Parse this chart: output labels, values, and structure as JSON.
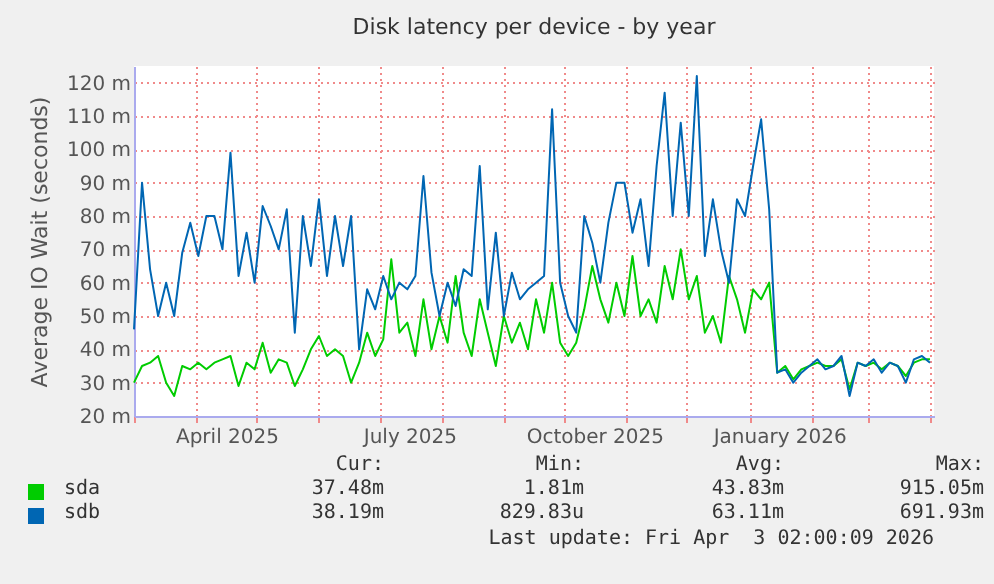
{
  "chart_data": {
    "type": "line",
    "title": "Disk latency per device - by year",
    "ylabel": "Average IO Wait (seconds)",
    "x": [
      "2025-03-01",
      "2025-03-05",
      "2025-03-09",
      "2025-03-13",
      "2025-03-17",
      "2025-03-21",
      "2025-03-25",
      "2025-03-29",
      "2025-04-02",
      "2025-04-06",
      "2025-04-10",
      "2025-04-14",
      "2025-04-18",
      "2025-04-22",
      "2025-04-26",
      "2025-04-30",
      "2025-05-04",
      "2025-05-08",
      "2025-05-12",
      "2025-05-16",
      "2025-05-20",
      "2025-05-24",
      "2025-05-28",
      "2025-06-01",
      "2025-06-05",
      "2025-06-09",
      "2025-06-13",
      "2025-06-17",
      "2025-06-21",
      "2025-06-25",
      "2025-06-29",
      "2025-07-03",
      "2025-07-07",
      "2025-07-11",
      "2025-07-15",
      "2025-07-19",
      "2025-07-23",
      "2025-07-27",
      "2025-07-31",
      "2025-08-04",
      "2025-08-08",
      "2025-08-12",
      "2025-08-16",
      "2025-08-20",
      "2025-08-24",
      "2025-08-28",
      "2025-09-01",
      "2025-09-05",
      "2025-09-09",
      "2025-09-13",
      "2025-09-17",
      "2025-09-21",
      "2025-09-25",
      "2025-09-29",
      "2025-10-03",
      "2025-10-07",
      "2025-10-11",
      "2025-10-15",
      "2025-10-19",
      "2025-10-23",
      "2025-10-27",
      "2025-10-31",
      "2025-11-04",
      "2025-11-08",
      "2025-11-12",
      "2025-11-16",
      "2025-11-20",
      "2025-11-24",
      "2025-11-28",
      "2025-12-02",
      "2025-12-06",
      "2025-12-10",
      "2025-12-14",
      "2025-12-18",
      "2025-12-22",
      "2025-12-26",
      "2025-12-30",
      "2026-01-03",
      "2026-01-07",
      "2026-01-11",
      "2026-01-15",
      "2026-01-19",
      "2026-01-23",
      "2026-01-27",
      "2026-01-31",
      "2026-02-04",
      "2026-02-08",
      "2026-02-12",
      "2026-02-16",
      "2026-02-20",
      "2026-02-24",
      "2026-02-28",
      "2026-03-04",
      "2026-03-08",
      "2026-03-12",
      "2026-03-16",
      "2026-03-20",
      "2026-03-24",
      "2026-03-28",
      "2026-04-01"
    ],
    "series": [
      {
        "name": "sda",
        "color": "#00cc00",
        "values": [
          30,
          35,
          36,
          38,
          30,
          26,
          35,
          34,
          36,
          34,
          36,
          37,
          38,
          29,
          36,
          34,
          42,
          33,
          37,
          36,
          29,
          34,
          40,
          44,
          38,
          40,
          38,
          30,
          36,
          45,
          38,
          43,
          67,
          45,
          48,
          38,
          55,
          40,
          50,
          42,
          62,
          45,
          38,
          55,
          45,
          35,
          50,
          42,
          48,
          40,
          55,
          45,
          60,
          42,
          38,
          42,
          52,
          65,
          55,
          48,
          60,
          50,
          68,
          50,
          55,
          48,
          65,
          55,
          70,
          55,
          62,
          45,
          50,
          42,
          62,
          55,
          45,
          58,
          55,
          60,
          33,
          35,
          31,
          34,
          35,
          36,
          35,
          35,
          37,
          28,
          36,
          35,
          36,
          34,
          36,
          35,
          32,
          36,
          37,
          37
        ]
      },
      {
        "name": "sdb",
        "color": "#0066b3",
        "values": [
          46,
          90,
          64,
          50,
          60,
          50,
          69,
          78,
          68,
          80,
          80,
          70,
          99,
          62,
          75,
          60,
          83,
          77,
          70,
          82,
          45,
          80,
          65,
          85,
          62,
          80,
          65,
          80,
          40,
          58,
          52,
          62,
          55,
          60,
          58,
          62,
          92,
          63,
          50,
          60,
          53,
          64,
          62,
          95,
          52,
          75,
          50,
          63,
          55,
          58,
          60,
          62,
          112,
          60,
          50,
          45,
          80,
          72,
          60,
          78,
          90,
          90,
          75,
          85,
          65,
          95,
          117,
          80,
          108,
          80,
          122,
          68,
          85,
          70,
          60,
          85,
          80,
          95,
          109,
          82,
          33,
          34,
          30,
          33,
          35,
          37,
          34,
          35,
          38,
          26,
          36,
          35,
          37,
          33,
          36,
          35,
          30,
          37,
          38,
          36
        ]
      }
    ],
    "xlim": [
      "2025-03-01",
      "2026-04-03"
    ],
    "xticks": [
      {
        "value": "2025-03-01",
        "label": null
      },
      {
        "value": "2025-04-01",
        "label": null
      },
      {
        "value": "2025-04-16",
        "label": "April 2025"
      },
      {
        "value": "2025-05-01",
        "label": null
      },
      {
        "value": "2025-06-01",
        "label": null
      },
      {
        "value": "2025-07-01",
        "label": null
      },
      {
        "value": "2025-07-16",
        "label": "July 2025"
      },
      {
        "value": "2025-08-01",
        "label": null
      },
      {
        "value": "2025-09-01",
        "label": null
      },
      {
        "value": "2025-10-01",
        "label": null
      },
      {
        "value": "2025-10-16",
        "label": "October 2025"
      },
      {
        "value": "2025-11-01",
        "label": null
      },
      {
        "value": "2025-12-01",
        "label": null
      },
      {
        "value": "2026-01-01",
        "label": null
      },
      {
        "value": "2026-01-16",
        "label": "January 2026"
      },
      {
        "value": "2026-02-01",
        "label": null
      },
      {
        "value": "2026-03-01",
        "label": null
      },
      {
        "value": "2026-04-01",
        "label": null
      }
    ],
    "ylim": [
      20,
      125
    ],
    "yticks": [
      {
        "value": 20,
        "label": "20 m"
      },
      {
        "value": 30,
        "label": "30 m"
      },
      {
        "value": 40,
        "label": "40 m"
      },
      {
        "value": 50,
        "label": "50 m"
      },
      {
        "value": 60,
        "label": "60 m"
      },
      {
        "value": 70,
        "label": "70 m"
      },
      {
        "value": 80,
        "label": "80 m"
      },
      {
        "value": 90,
        "label": "90 m"
      },
      {
        "value": 100,
        "label": "100 m"
      },
      {
        "value": 110,
        "label": "110 m"
      },
      {
        "value": 120,
        "label": "120 m"
      }
    ],
    "grid": true,
    "legend": "bottom left",
    "marker": "none",
    "line_style": "solid",
    "annotations": [
      "Cur:",
      "Min:",
      "Avg:",
      "Max:",
      "37.48m",
      "1.81m",
      "43.83m",
      "915.05m",
      "38.19m",
      "829.83u",
      "63.11m",
      "691.93m",
      "Last update: Fri Apr  3 02:00:09 2026"
    ]
  }
}
